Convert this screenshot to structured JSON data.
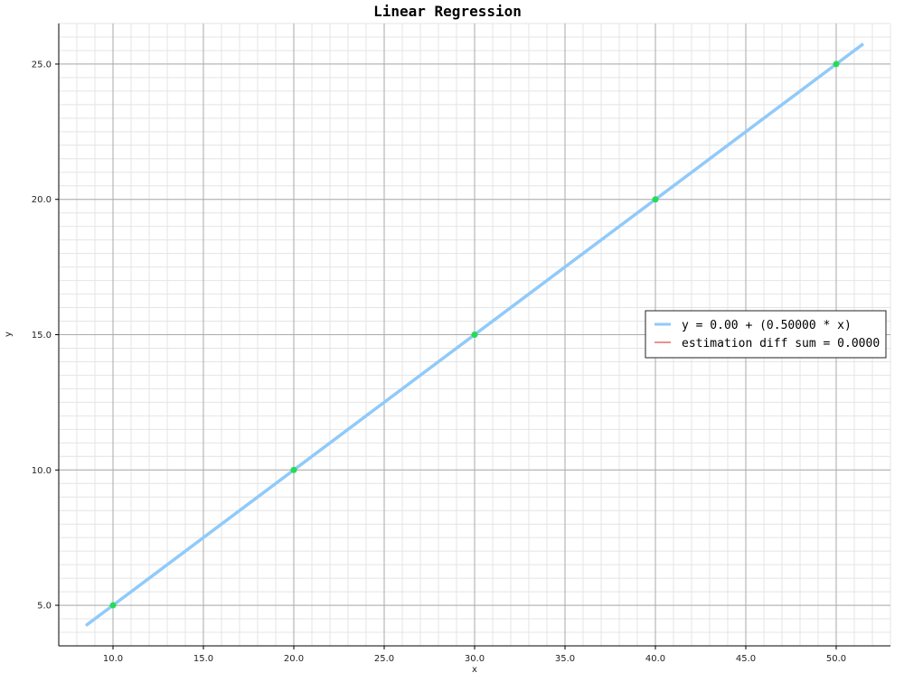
{
  "chart_data": {
    "type": "scatter",
    "title": "Linear Regression",
    "xlabel": "x",
    "ylabel": "y",
    "xlim": [
      7.0,
      53.0
    ],
    "ylim": [
      3.5,
      26.5
    ],
    "grid": true,
    "legend_position": "right",
    "x_ticks": [
      10.0,
      15.0,
      20.0,
      25.0,
      30.0,
      35.0,
      40.0,
      45.0,
      50.0
    ],
    "x_tick_labels": [
      "10.0",
      "15.0",
      "20.0",
      "25.0",
      "30.0",
      "35.0",
      "40.0",
      "45.0",
      "50.0"
    ],
    "y_ticks": [
      5.0,
      10.0,
      15.0,
      20.0,
      25.0
    ],
    "y_tick_labels": [
      "5.0",
      "10.0",
      "15.0",
      "20.0",
      "25.0"
    ],
    "points": {
      "x": [
        10,
        20,
        30,
        40,
        50
      ],
      "y": [
        5,
        10,
        15,
        20,
        25
      ],
      "color": "#22dd55"
    },
    "regression_line": {
      "name": "y = 0.00 + (0.50000 * x)",
      "intercept": 0.0,
      "slope": 0.5,
      "x_range": [
        8.5,
        51.5
      ],
      "color": "#90caf9"
    },
    "legend": [
      {
        "label": "y = 0.00 + (0.50000 * x)",
        "color": "#90caf9"
      },
      {
        "label": "estimation diff sum = 0.0000",
        "color": "#dd2222"
      }
    ]
  }
}
